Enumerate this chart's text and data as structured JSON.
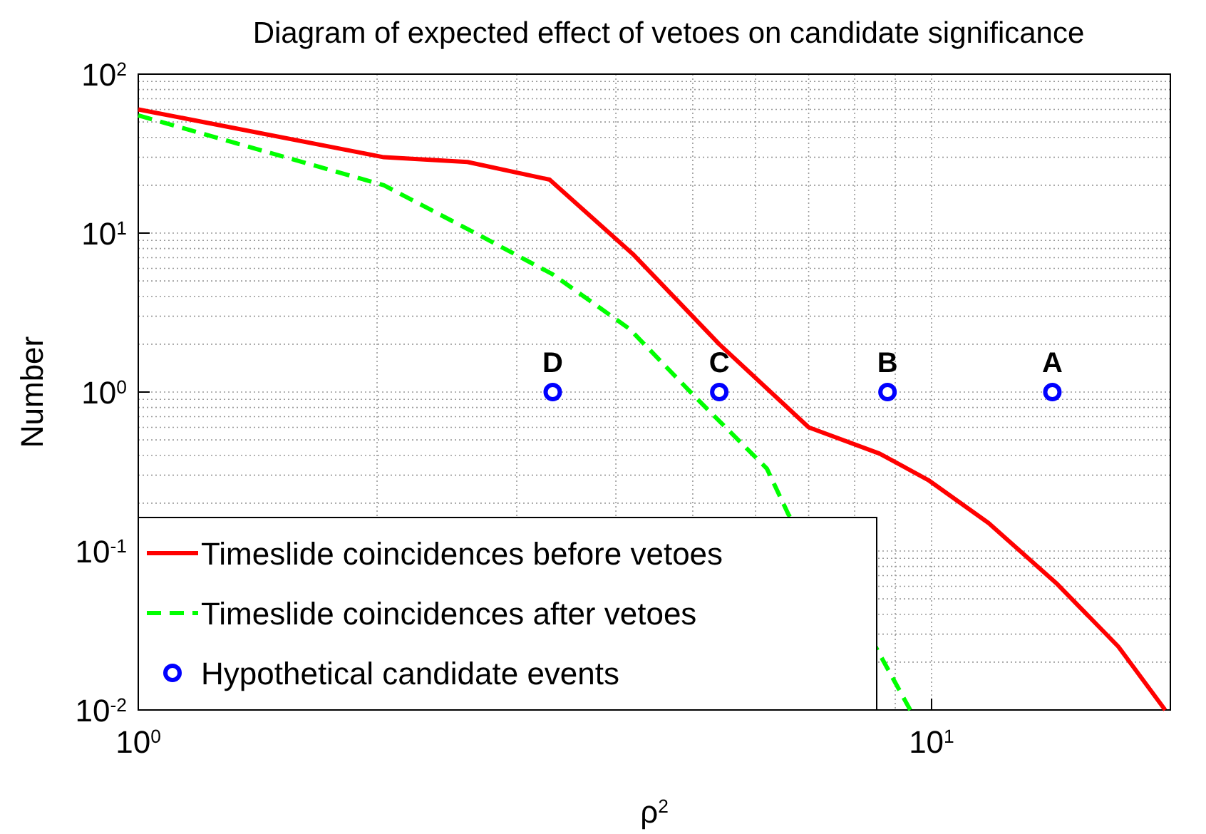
{
  "chart_data": {
    "type": "line",
    "title": "Diagram of expected effect of vetoes on candidate significance",
    "xlabel": "ρ$^{2}$",
    "ylabel": "Number",
    "log": "xy",
    "grid": true,
    "legend": "bottom left",
    "xlim": [
      1,
      20
    ],
    "xticks": [
      {
        "value": 1,
        "label": "10$^{0}$"
      },
      {
        "value": 10,
        "label": "10$^{1}$"
      }
    ],
    "ylim": [
      0.01,
      100
    ],
    "yticks": [
      {
        "value": 0.01,
        "label": "10$^{-2}$"
      },
      {
        "value": 0.1,
        "label": "10$^{-1}$"
      },
      {
        "value": 1,
        "label": "10$^{0}$"
      },
      {
        "value": 10,
        "label": "10$^{1}$"
      },
      {
        "value": 100,
        "label": "10$^{2}$"
      }
    ],
    "series": [
      {
        "name": "Timeslide coincidences before vetoes",
        "color": "#ff0000",
        "line_style": "solid",
        "marker": "none",
        "x": [
          1,
          2.04,
          2.6,
          3.3,
          4.2,
          5.4,
          7.0,
          8.6,
          9.9,
          11.8,
          14.4,
          17.2,
          19.7
        ],
        "values": [
          60,
          30,
          28,
          21.7,
          7.4,
          2.0,
          0.6,
          0.41,
          0.28,
          0.15,
          0.062,
          0.025,
          0.01
        ]
      },
      {
        "name": "Timeslide coincidences after vetoes",
        "color": "#00ff00",
        "line_style": "dashed",
        "marker": "none",
        "x": [
          1,
          2.04,
          2.66,
          3.33,
          4.16,
          5.07,
          6.2,
          6.6,
          8.5,
          9.4
        ],
        "values": [
          55,
          20,
          10,
          5.5,
          2.5,
          0.9,
          0.33,
          0.17,
          0.025,
          0.01
        ]
      },
      {
        "name": "Hypothetical candidate events",
        "type": "scatter",
        "color": "#0000ff",
        "marker": "circle",
        "x": [
          3.33,
          5.4,
          8.8,
          14.2
        ],
        "values": [
          1,
          1,
          1,
          1
        ]
      }
    ],
    "annotations": [
      {
        "text": "D",
        "x": 3.33,
        "y": 1
      },
      {
        "text": "C",
        "x": 5.4,
        "y": 1
      },
      {
        "text": "B",
        "x": 8.8,
        "y": 1
      },
      {
        "text": "A",
        "x": 14.2,
        "y": 1
      }
    ]
  }
}
